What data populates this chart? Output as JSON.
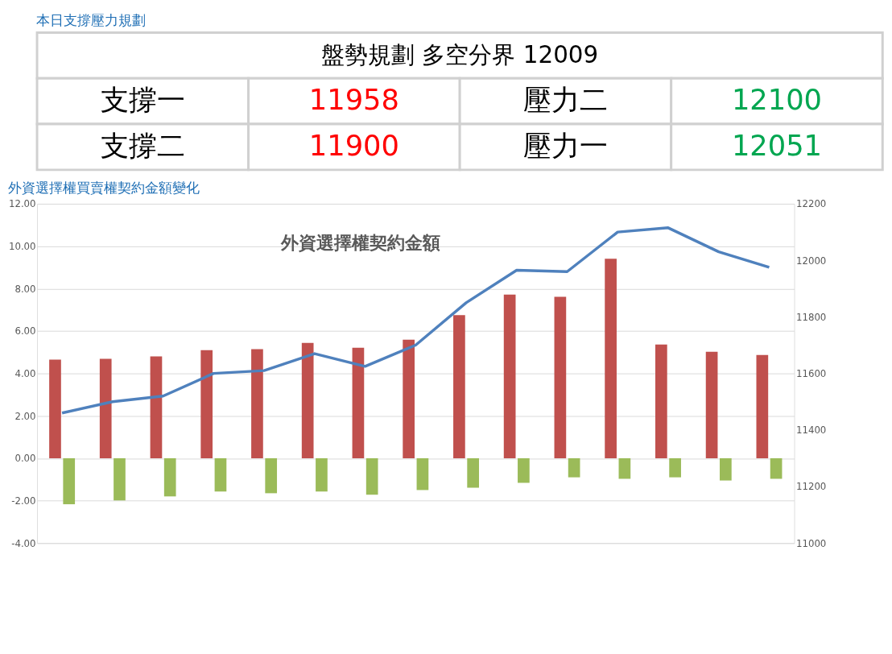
{
  "chart_data": [
    {
      "type": "other",
      "title": "本日支撐壓力規劃",
      "annotations": [
        "盤勢規劃 多空分界 12009",
        "支撐一",
        "11958",
        "壓力二",
        "12100",
        "支撐二",
        "11900",
        "壓力一",
        "12051"
      ]
    },
    {
      "type": "bar",
      "title": "外資選擇權買賣權契約金額變化",
      "subtitle": "外資選擇權契約金額",
      "categories": [
        null,
        null,
        null,
        null,
        null,
        null,
        null,
        null,
        null,
        null,
        null,
        null,
        null,
        null,
        null
      ],
      "series": [
        {
          "color": "#c0504d",
          "values": [
            4.65,
            4.69,
            4.8,
            5.1,
            5.14,
            5.44,
            5.21,
            5.59,
            6.75,
            7.72,
            7.61,
            9.41,
            5.36,
            5.02,
            4.87
          ]
        },
        {
          "color": "#9bbb59",
          "values": [
            -2.17,
            -1.99,
            -1.8,
            -1.57,
            -1.65,
            -1.57,
            -1.72,
            -1.5,
            -1.39,
            -1.16,
            -0.9,
            -0.97,
            -0.9,
            -1.05,
            -0.97
          ]
        },
        {
          "type": "line",
          "axis": "y2",
          "color": "#4f81bd",
          "values": [
            11460,
            11500,
            11520,
            11600,
            11610,
            11670,
            11625,
            11700,
            11850,
            11965,
            11960,
            12100,
            12115,
            12030,
            11975
          ]
        }
      ],
      "ylim": [
        -4,
        12
      ],
      "yticks": [
        {
          "value": -4,
          "label": "-4.00"
        },
        {
          "value": -2,
          "label": "-2.00"
        },
        {
          "value": 0,
          "label": "0.00"
        },
        {
          "value": 2,
          "label": "2.00"
        },
        {
          "value": 4,
          "label": "4.00"
        },
        {
          "value": 6,
          "label": "6.00"
        },
        {
          "value": 8,
          "label": "8.00"
        },
        {
          "value": 10,
          "label": "10.00"
        },
        {
          "value": 12,
          "label": "12.00"
        }
      ],
      "y2lim": [
        11000,
        12200
      ],
      "y2ticks": [
        11000,
        11200,
        11400,
        11600,
        11800,
        12000,
        12200
      ],
      "grid": "y",
      "marker": "none",
      "line_style": "solid"
    }
  ]
}
